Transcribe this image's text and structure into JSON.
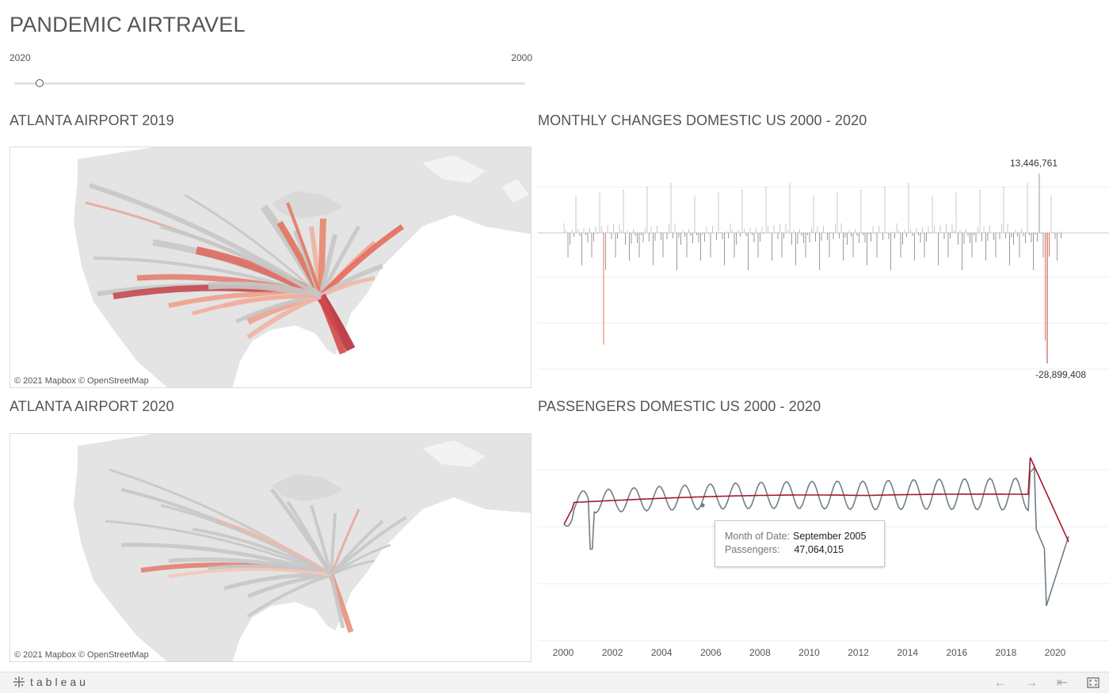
{
  "dashboard": {
    "title": "PANDEMIC AIRTRAVEL"
  },
  "year_slider": {
    "min_label": "2020",
    "max_label": "2000",
    "position": 0.05
  },
  "maps": {
    "map_2019": {
      "title": "ATLANTA AIRPORT 2019",
      "attribution": "© 2021 Mapbox  © OpenStreetMap"
    },
    "map_2020": {
      "title": "ATLANTA AIRPORT 2020",
      "attribution": "© 2021 Mapbox  © OpenStreetMap"
    }
  },
  "monthly_changes": {
    "title": "MONTHLY CHANGES DOMESTIC US 2000 - 2020",
    "max_label": "13,446,761",
    "min_label": "-28,899,408",
    "colors": {
      "positive": "#9a9a9a",
      "negative": "#c8c8c8",
      "extreme": "#e0714f",
      "extreme_dark": "#c23a3a"
    }
  },
  "passengers": {
    "title": "PASSENGERS DOMESTIC US 2000 - 2020",
    "x_ticks": [
      "2000",
      "2002",
      "2004",
      "2006",
      "2008",
      "2010",
      "2012",
      "2014",
      "2016",
      "2018",
      "2020"
    ],
    "colors": {
      "actual": "#6f7f86",
      "trend": "#a5182c"
    },
    "tooltip": {
      "month_label": "Month of Date:",
      "month_value": "September 2005",
      "passengers_label": "Passengers:",
      "passengers_value": "47,064,015"
    }
  },
  "footer": {
    "brand": "tableau",
    "icons": [
      "undo-icon",
      "redo-icon",
      "revert-icon",
      "fullscreen-icon"
    ]
  }
}
